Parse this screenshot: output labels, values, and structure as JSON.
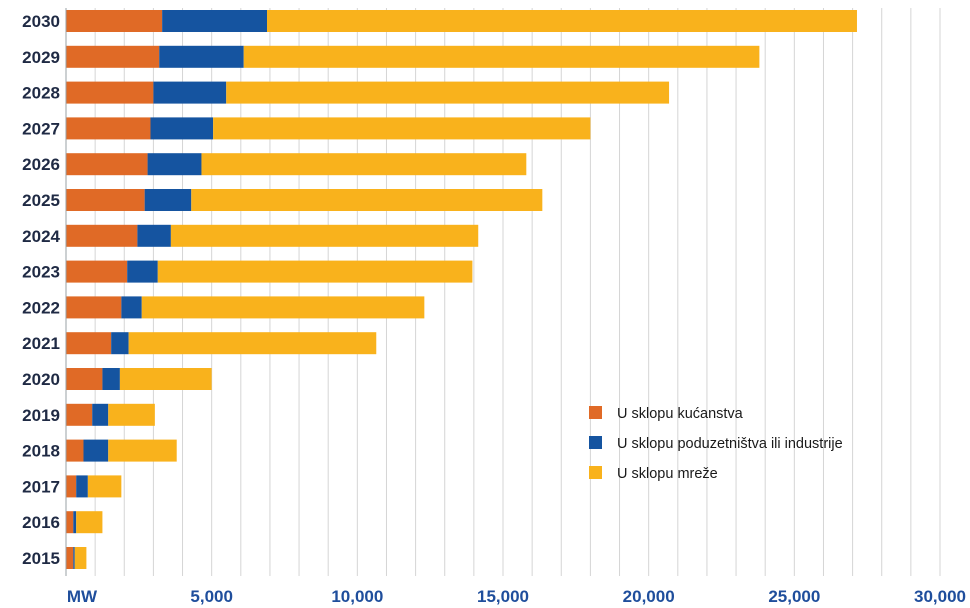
{
  "chart_data": {
    "type": "bar",
    "orientation": "horizontal",
    "stacked": true,
    "categories": [
      "2030",
      "2029",
      "2028",
      "2027",
      "2026",
      "2025",
      "2024",
      "2023",
      "2022",
      "2021",
      "2020",
      "2019",
      "2018",
      "2017",
      "2016",
      "2015"
    ],
    "series": [
      {
        "name": "U sklopu kućanstva",
        "color": "#e06a26",
        "values": [
          3300,
          3200,
          3000,
          2900,
          2800,
          2700,
          2450,
          2100,
          1900,
          1550,
          1250,
          900,
          600,
          350,
          250,
          250
        ]
      },
      {
        "name": "U sklopu poduzetništva ili industrije",
        "color": "#1554a0",
        "values": [
          3600,
          2900,
          2500,
          2150,
          1850,
          1600,
          1150,
          1050,
          700,
          600,
          600,
          550,
          850,
          400,
          100,
          50
        ]
      },
      {
        "name": "U sklopu mreže",
        "color": "#f9b21c",
        "values": [
          20250,
          17700,
          15200,
          12950,
          11150,
          12050,
          10550,
          10800,
          9700,
          8500,
          3150,
          1600,
          2350,
          1150,
          900,
          400
        ]
      }
    ],
    "xlim": [
      0,
      30000
    ],
    "x_ticks": [
      "MW",
      "5,000",
      "10,000",
      "15,000",
      "20,000",
      "25,000",
      "30,000"
    ],
    "grid": true,
    "legend_position": "right-middle"
  }
}
